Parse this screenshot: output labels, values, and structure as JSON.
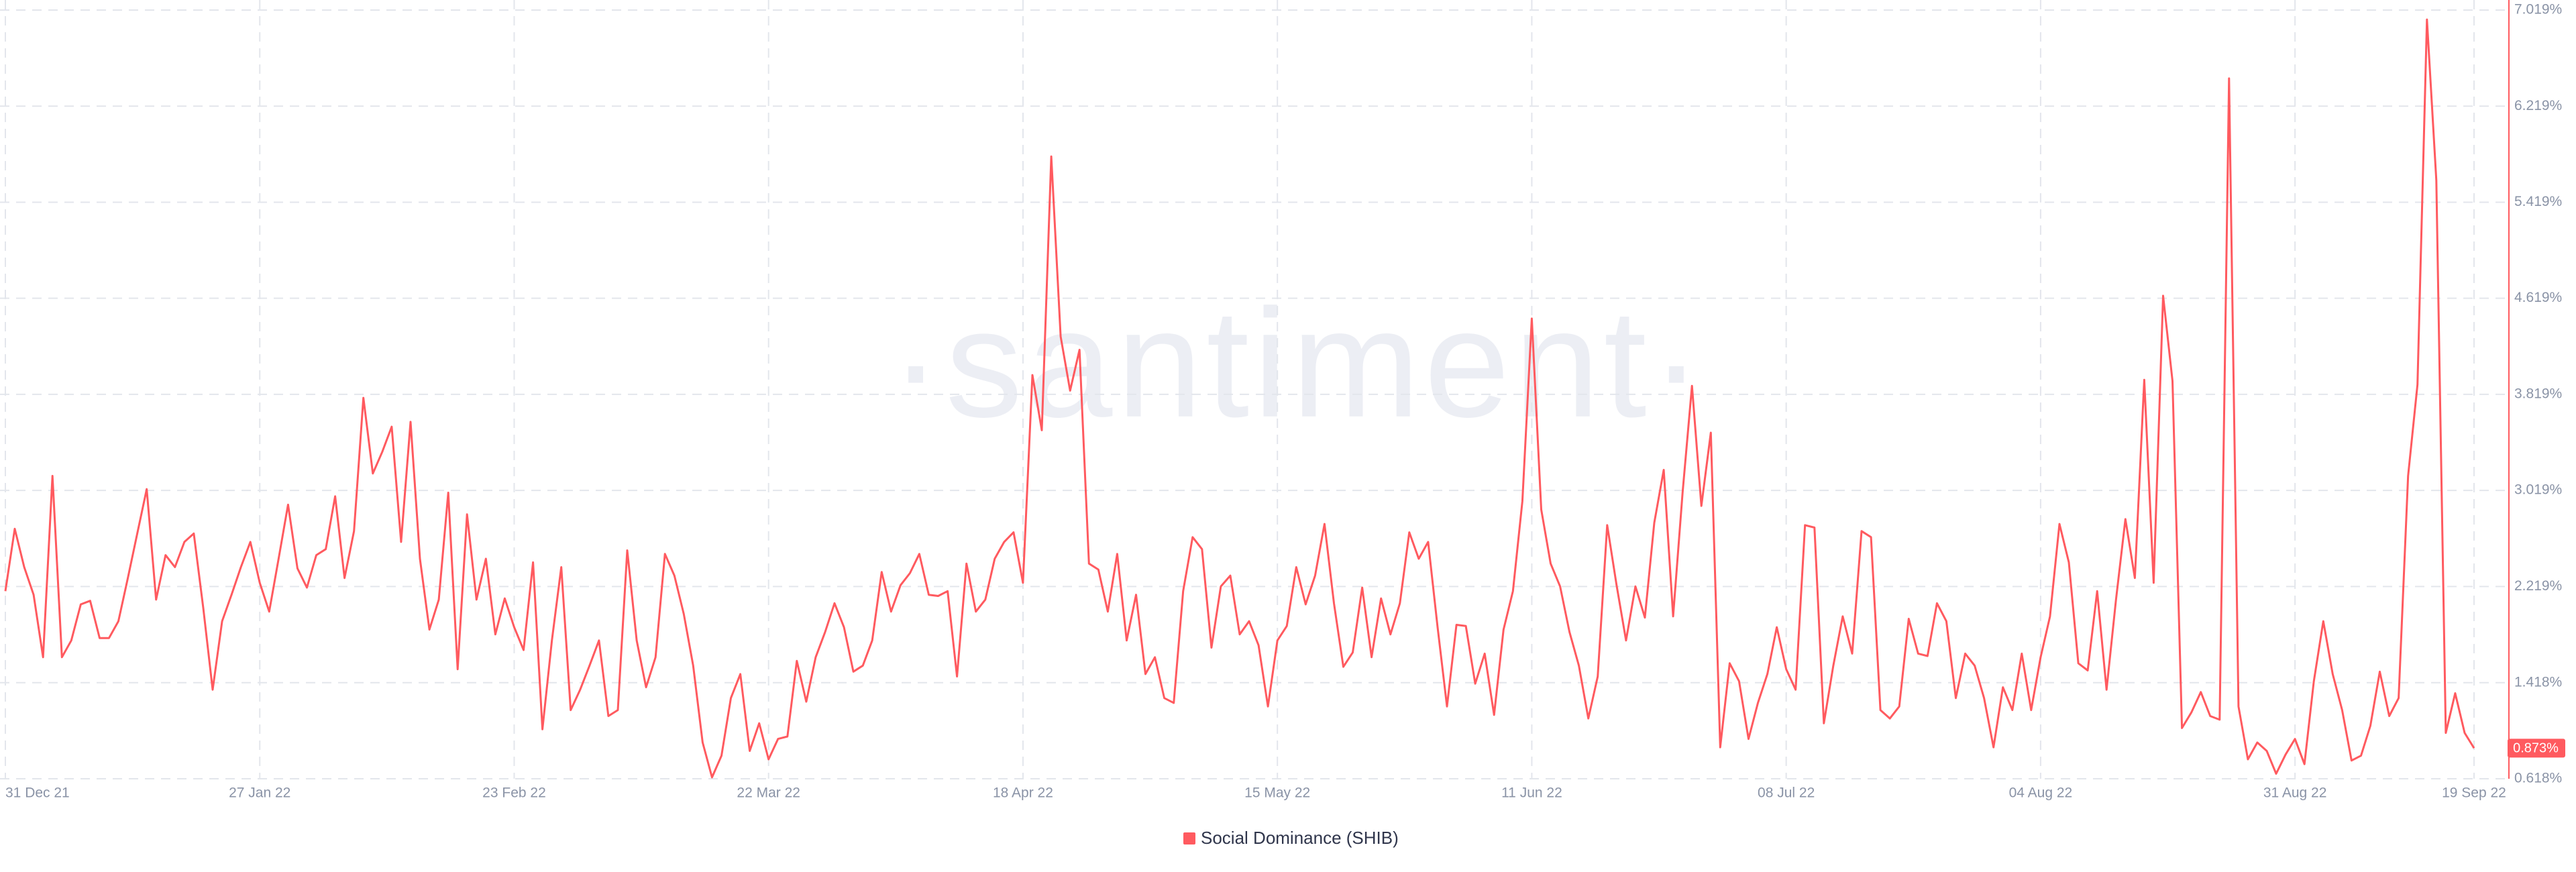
{
  "chart_data": {
    "type": "line",
    "watermark": "·santiment·",
    "categories": [
      "31 Dec 21",
      null,
      null,
      null,
      null,
      null,
      null,
      null,
      null,
      null,
      null,
      null,
      null,
      null,
      null,
      null,
      null,
      null,
      null,
      null,
      null,
      null,
      null,
      null,
      null,
      null,
      null,
      "27 Jan 22",
      null,
      null,
      null,
      null,
      null,
      null,
      null,
      null,
      null,
      null,
      null,
      null,
      null,
      null,
      null,
      null,
      null,
      null,
      null,
      null,
      null,
      null,
      null,
      null,
      null,
      null,
      "23 Feb 22",
      null,
      null,
      null,
      null,
      null,
      null,
      null,
      null,
      null,
      null,
      null,
      null,
      null,
      null,
      null,
      null,
      null,
      null,
      null,
      null,
      null,
      null,
      null,
      null,
      null,
      null,
      "22 Mar 22",
      null,
      null,
      null,
      null,
      null,
      null,
      null,
      null,
      null,
      null,
      null,
      null,
      null,
      null,
      null,
      null,
      null,
      null,
      null,
      null,
      null,
      null,
      null,
      null,
      null,
      null,
      "18 Apr 22",
      null,
      null,
      null,
      null,
      null,
      null,
      null,
      null,
      null,
      null,
      null,
      null,
      null,
      null,
      null,
      null,
      null,
      null,
      null,
      null,
      null,
      null,
      null,
      null,
      null,
      null,
      "15 May 22",
      null,
      null,
      null,
      null,
      null,
      null,
      null,
      null,
      null,
      null,
      null,
      null,
      null,
      null,
      null,
      null,
      null,
      null,
      null,
      null,
      null,
      null,
      null,
      null,
      null,
      null,
      "11 Jun 22",
      null,
      null,
      null,
      null,
      null,
      null,
      null,
      null,
      null,
      null,
      null,
      null,
      null,
      null,
      null,
      null,
      null,
      null,
      null,
      null,
      null,
      null,
      null,
      null,
      null,
      null,
      "08 Jul 22",
      null,
      null,
      null,
      null,
      null,
      null,
      null,
      null,
      null,
      null,
      null,
      null,
      null,
      null,
      null,
      null,
      null,
      null,
      null,
      null,
      null,
      null,
      null,
      null,
      null,
      null,
      "04 Aug 22",
      null,
      null,
      null,
      null,
      null,
      null,
      null,
      null,
      null,
      null,
      null,
      null,
      null,
      null,
      null,
      null,
      null,
      null,
      null,
      null,
      null,
      null,
      null,
      null,
      null,
      null,
      "31 Aug 22",
      null,
      null,
      null,
      null,
      null,
      null,
      null,
      null,
      null,
      null,
      null,
      null,
      null,
      null,
      null,
      null,
      null,
      null,
      "19 Sep 22"
    ],
    "series": [
      {
        "name": "Social Dominance (SHIB)",
        "color": "#ff5a5f",
        "values": [
          2.18,
          2.7,
          2.38,
          2.15,
          1.63,
          3.14,
          1.63,
          1.77,
          2.07,
          2.1,
          1.79,
          1.79,
          1.93,
          2.29,
          2.66,
          3.03,
          2.11,
          2.48,
          2.38,
          2.59,
          2.66,
          2.04,
          1.36,
          1.93,
          2.15,
          2.38,
          2.59,
          2.25,
          2.01,
          2.45,
          2.9,
          2.37,
          2.21,
          2.48,
          2.53,
          2.97,
          2.29,
          2.68,
          3.79,
          3.16,
          3.34,
          3.55,
          2.59,
          3.59,
          2.45,
          1.86,
          2.11,
          3.0,
          1.53,
          2.82,
          2.11,
          2.45,
          1.82,
          2.12,
          1.88,
          1.69,
          2.42,
          1.03,
          1.77,
          2.38,
          1.19,
          1.36,
          1.56,
          1.77,
          1.14,
          1.19,
          2.52,
          1.77,
          1.38,
          1.63,
          2.49,
          2.31,
          1.99,
          1.56,
          0.92,
          0.63,
          0.81,
          1.29,
          1.49,
          0.85,
          1.08,
          0.78,
          0.95,
          0.97,
          1.6,
          1.26,
          1.63,
          1.84,
          2.08,
          1.88,
          1.51,
          1.56,
          1.77,
          2.34,
          2.01,
          2.23,
          2.33,
          2.49,
          2.15,
          2.14,
          2.18,
          1.47,
          2.41,
          2.01,
          2.11,
          2.45,
          2.59,
          2.67,
          2.25,
          3.98,
          3.52,
          5.8,
          4.3,
          3.85,
          4.19,
          2.41,
          2.36,
          2.01,
          2.49,
          1.77,
          2.15,
          1.49,
          1.63,
          1.29,
          1.25,
          2.18,
          2.63,
          2.53,
          1.71,
          2.22,
          2.31,
          1.82,
          1.93,
          1.73,
          1.22,
          1.77,
          1.89,
          2.38,
          2.07,
          2.31,
          2.74,
          2.08,
          1.55,
          1.67,
          2.21,
          1.63,
          2.12,
          1.82,
          2.08,
          2.67,
          2.45,
          2.59,
          1.88,
          1.22,
          1.9,
          1.89,
          1.41,
          1.66,
          1.15,
          1.86,
          2.18,
          2.93,
          4.45,
          2.86,
          2.41,
          2.22,
          1.84,
          1.56,
          1.12,
          1.47,
          2.73,
          2.23,
          1.77,
          2.22,
          1.96,
          2.75,
          3.19,
          1.97,
          3.0,
          3.89,
          2.89,
          3.5,
          0.88,
          1.58,
          1.43,
          0.95,
          1.25,
          1.49,
          1.88,
          1.53,
          1.36,
          2.73,
          2.71,
          1.08,
          1.56,
          1.97,
          1.66,
          2.68,
          2.63,
          1.19,
          1.12,
          1.22,
          1.95,
          1.66,
          1.64,
          2.08,
          1.93,
          1.29,
          1.66,
          1.56,
          1.29,
          0.88,
          1.38,
          1.19,
          1.66,
          1.19,
          1.63,
          1.97,
          2.74,
          2.42,
          1.58,
          1.52,
          2.18,
          1.36,
          2.11,
          2.78,
          2.29,
          3.94,
          2.25,
          4.64,
          3.93,
          1.04,
          1.17,
          1.34,
          1.14,
          1.11,
          6.45,
          1.22,
          0.78,
          0.92,
          0.85,
          0.66,
          0.82,
          0.95,
          0.74,
          1.43,
          1.93,
          1.49,
          1.19,
          0.77,
          0.81,
          1.06,
          1.51,
          1.14,
          1.29,
          3.14,
          3.9,
          6.94,
          5.6,
          1.0,
          1.33,
          1.0,
          0.873
        ],
        "value_labels": [
          null,
          null,
          null,
          null,
          null,
          null,
          null,
          null,
          null,
          null,
          null,
          null,
          null,
          null,
          null,
          null,
          null,
          null,
          null,
          null,
          null,
          null,
          null,
          null,
          null,
          null,
          null,
          null,
          null,
          null,
          null,
          null,
          null,
          null,
          null,
          null,
          null,
          null,
          null,
          null,
          null,
          null,
          null,
          null,
          null,
          null,
          null,
          null,
          null,
          null,
          null,
          null,
          null,
          null,
          null,
          null,
          null,
          null,
          null,
          null,
          null,
          null,
          null,
          null,
          null,
          null,
          null,
          null,
          null,
          null,
          null,
          null,
          null,
          null,
          null,
          null,
          null,
          null,
          null,
          null,
          null,
          null,
          null,
          null,
          null,
          null,
          null,
          null,
          null,
          null,
          null,
          null,
          null,
          null,
          null,
          null,
          null,
          null,
          null,
          null,
          null,
          null,
          null,
          null,
          null,
          null,
          null,
          null,
          null,
          null,
          null,
          null,
          null,
          null,
          null,
          null,
          null,
          null,
          null,
          null,
          null,
          null,
          null,
          null,
          null,
          null,
          null,
          null,
          null,
          null,
          null,
          null,
          null,
          null,
          null,
          null,
          null,
          null,
          null,
          null,
          null,
          null,
          null,
          null,
          null,
          null,
          null,
          null,
          null,
          null,
          null,
          null,
          null,
          null,
          null,
          null,
          null,
          null,
          null,
          null,
          null,
          null,
          null,
          null,
          null,
          null,
          null,
          null,
          null,
          null,
          null,
          null,
          null,
          null,
          null,
          null,
          null,
          null,
          null,
          null,
          null,
          null,
          null,
          null,
          null,
          null,
          null,
          null,
          null,
          null,
          null,
          null,
          null,
          null,
          null,
          null,
          null,
          null,
          null,
          null,
          null,
          null,
          null,
          null,
          null,
          null,
          null,
          null,
          null,
          null,
          null,
          null,
          null,
          null,
          null,
          null,
          null,
          null,
          null,
          null,
          null,
          null,
          null,
          null,
          null,
          null,
          null,
          null,
          null,
          null,
          null,
          null,
          null,
          null,
          null,
          null,
          null,
          null,
          null,
          null,
          null,
          null,
          null,
          null,
          null,
          null,
          null,
          null,
          null,
          null,
          null,
          null,
          null,
          null,
          null,
          null,
          null,
          null,
          null,
          null,
          null,
          null,
          "0.873%"
        ]
      }
    ],
    "ylim": [
      0.618,
      7.019
    ],
    "yticks": [
      {
        "value": 0.618,
        "label": "0.618%"
      },
      {
        "value": 1.418,
        "label": "1.418%"
      },
      {
        "value": 2.219,
        "label": "2.219%"
      },
      {
        "value": 3.019,
        "label": "3.019%"
      },
      {
        "value": 3.819,
        "label": "3.819%"
      },
      {
        "value": 4.619,
        "label": "4.619%"
      },
      {
        "value": 5.419,
        "label": "5.419%"
      },
      {
        "value": 6.219,
        "label": "6.219%"
      },
      {
        "value": 7.019,
        "label": "7.019%"
      }
    ],
    "grid": true,
    "y_axis_side": "right",
    "legend": "bottom"
  }
}
